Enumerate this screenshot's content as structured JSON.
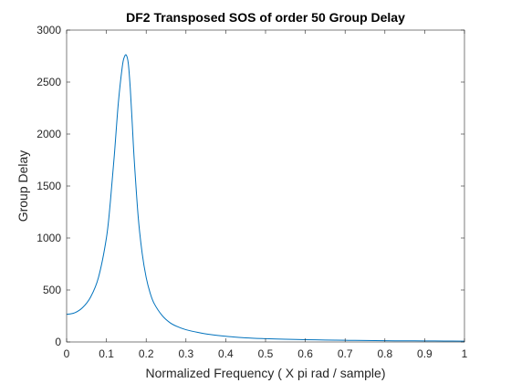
{
  "chart_data": {
    "type": "line",
    "title": "DF2 Transposed SOS of order 50 Group Delay",
    "xlabel": "Normalized Frequency ( X pi rad / sample)",
    "ylabel": "Group Delay",
    "xlim": [
      0,
      1
    ],
    "ylim": [
      0,
      3000
    ],
    "xticks": [
      "0",
      "0.1",
      "0.2",
      "0.3",
      "0.4",
      "0.5",
      "0.6",
      "0.7",
      "0.8",
      "0.9",
      "1"
    ],
    "yticks": [
      "0",
      "500",
      "1000",
      "1500",
      "2000",
      "2500",
      "3000"
    ],
    "grid": false,
    "line_color": "#0072BD",
    "series": [
      {
        "x": [
          0,
          0.02,
          0.04,
          0.06,
          0.08,
          0.1,
          0.11,
          0.12,
          0.13,
          0.14,
          0.145,
          0.15,
          0.155,
          0.16,
          0.165,
          0.17,
          0.18,
          0.19,
          0.2,
          0.21,
          0.22,
          0.24,
          0.26,
          0.28,
          0.3,
          0.33,
          0.36,
          0.4,
          0.45,
          0.5,
          0.55,
          0.6,
          0.65,
          0.7,
          0.75,
          0.8,
          0.85,
          0.9,
          0.95,
          1.0
        ],
        "values": [
          265,
          280,
          330,
          430,
          620,
          1000,
          1350,
          1800,
          2300,
          2650,
          2740,
          2760,
          2680,
          2440,
          2100,
          1750,
          1200,
          850,
          620,
          470,
          370,
          255,
          185,
          145,
          118,
          92,
          72,
          55,
          40,
          32,
          26,
          22,
          19,
          16,
          14,
          12,
          11,
          10,
          9,
          8
        ]
      }
    ]
  }
}
